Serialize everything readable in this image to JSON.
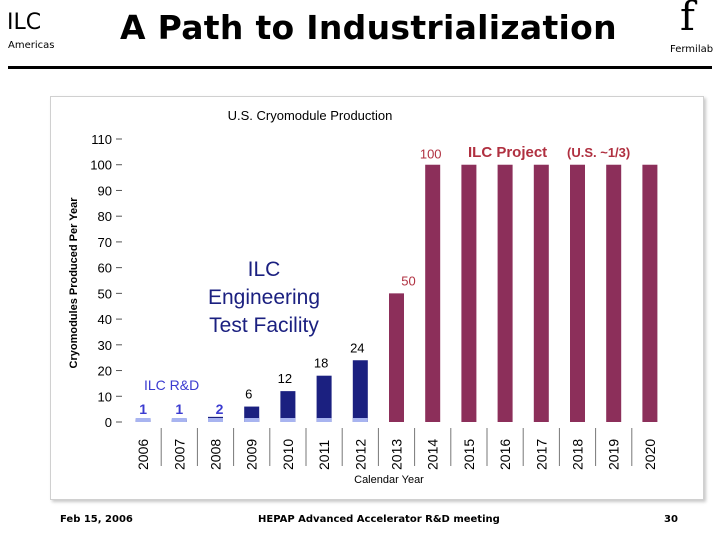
{
  "header": {
    "logo_text": "ILC",
    "logo_subtext": "Americas",
    "title": "A Path to Industrialization",
    "fermilab_glyph": "f",
    "fermilab_text": "Fermilab"
  },
  "footer": {
    "date": "Feb 15, 2006",
    "meeting": "HEPAP Advanced Accelerator R&D meeting",
    "page": "30"
  },
  "colors": {
    "rnd_bar": "#1b2080",
    "project_bar": "#8c2f5a",
    "label_blue": "#3b3bd0",
    "label_red": "#b03040",
    "bar_highlight": "#a8b4f0"
  },
  "chart_data": {
    "type": "bar",
    "title": "U.S. Cryomodule Production",
    "xlabel": "Calendar Year",
    "ylabel": "Cryomodules Produced Per Year",
    "ylim": [
      0,
      110
    ],
    "yticks": [
      0,
      10,
      20,
      30,
      40,
      50,
      60,
      70,
      80,
      90,
      100,
      110
    ],
    "grid": false,
    "categories": [
      "2006",
      "2007",
      "2008",
      "2009",
      "2010",
      "2011",
      "2012",
      "2013",
      "2014",
      "2015",
      "2016",
      "2017",
      "2018",
      "2019",
      "2020"
    ],
    "series": [
      {
        "name": "ILC R&D",
        "values": [
          1,
          1,
          2,
          6,
          12,
          18,
          24,
          null,
          null,
          null,
          null,
          null,
          null,
          null,
          null
        ]
      },
      {
        "name": "ILC Project",
        "values": [
          null,
          null,
          null,
          null,
          null,
          null,
          null,
          50,
          100,
          100,
          100,
          100,
          100,
          100,
          100
        ]
      }
    ],
    "data_labels": [
      "1",
      "1",
      "2",
      "6",
      "12",
      "18",
      "24",
      "50",
      "100"
    ],
    "annotations": {
      "rnd_label": "ILC R&D",
      "project_label": "ILC Project",
      "project_share": "(U.S. ~1/3)",
      "etf_line1": "ILC",
      "etf_line2": "Engineering",
      "etf_line3": "Test Facility"
    }
  }
}
